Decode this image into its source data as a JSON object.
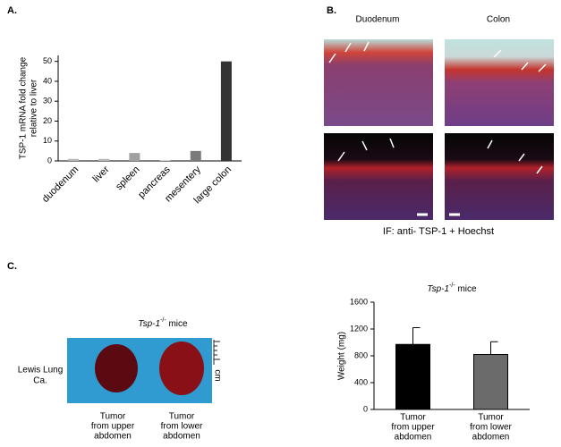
{
  "panels": {
    "a": "A.",
    "b": "B.",
    "c": "C.",
    "duodenum": "Duodenum",
    "colon": "Colon",
    "if_caption": "IF: anti- TSP-1 + Hoechst",
    "photo_title": {
      "gene": "Tsp-1",
      "genotype": "-/-",
      "suffix": " mice"
    },
    "photo_side": [
      "Lewis Lung",
      "Ca."
    ],
    "ruler": "cm",
    "tumors": [
      [
        "Tumor",
        "from upper",
        "abdomen"
      ],
      [
        "Tumor",
        "from lower",
        "abdomen"
      ]
    ]
  },
  "chart_data": [
    {
      "type": "bar",
      "ylabel": [
        "TSP-1 mRNA fold change",
        "relative to liver"
      ],
      "categories": [
        "duodenum",
        "liver",
        "spleen",
        "pancreas",
        "mesentery",
        "large colon"
      ],
      "values": [
        1,
        1,
        4,
        0.2,
        5,
        50
      ],
      "colors": [
        "#b5b5b5",
        "#b5b5b5",
        "#a0a0a0",
        "#b5b5b5",
        "#7a7a7a",
        "#333333"
      ],
      "ylim": [
        0,
        53
      ],
      "yticks": [
        0,
        10,
        20,
        30,
        40,
        50
      ]
    },
    {
      "type": "errorbar",
      "title": {
        "gene": "Tsp-1",
        "genotype": "-/-",
        "suffix": " mice"
      },
      "ylabel": [
        "Weight (mg)"
      ],
      "categories": [
        [
          "Tumor",
          "from upper",
          "abdomen"
        ],
        [
          "Tumor",
          "from lower",
          "abdomen"
        ]
      ],
      "values": [
        970,
        820
      ],
      "errors": [
        250,
        190
      ],
      "colors": [
        "#000000",
        "#6b6b6b"
      ],
      "ylim": [
        0,
        1600
      ],
      "yticks": [
        0,
        400,
        800,
        1200,
        1600
      ]
    }
  ]
}
